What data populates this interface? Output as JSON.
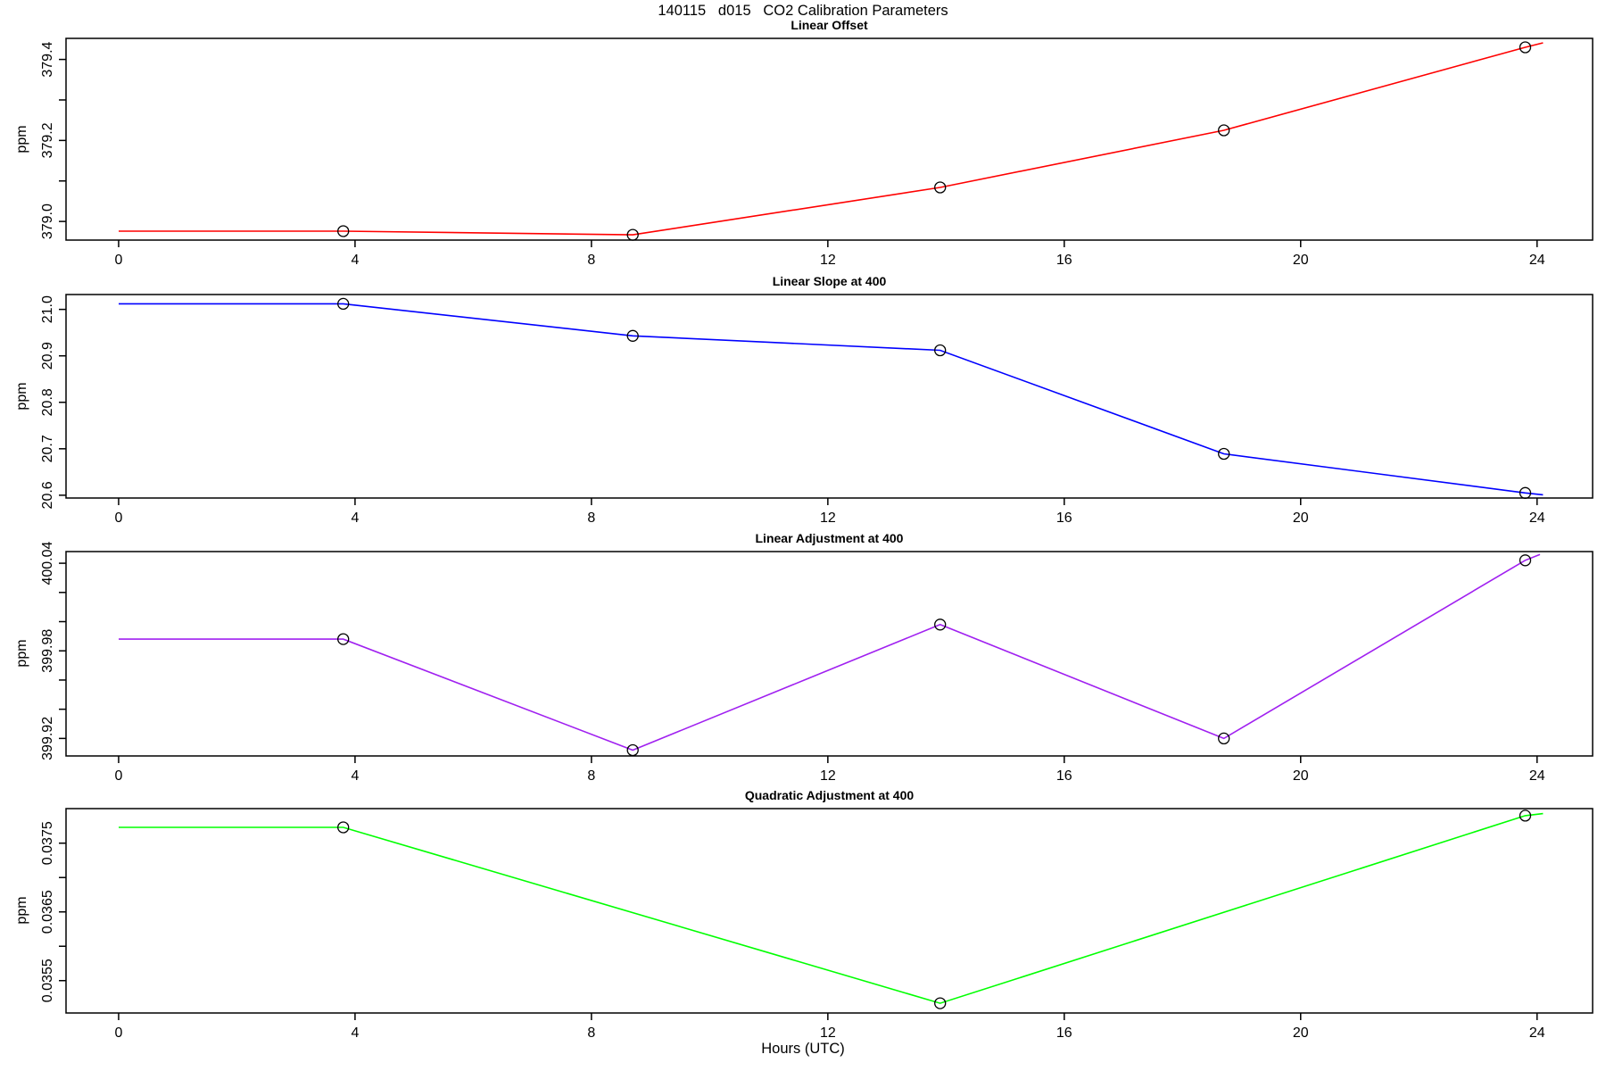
{
  "figure": {
    "title": "140115   d015   CO2 Calibration Parameters",
    "xlabel": "Hours (UTC)"
  },
  "chart_data": [
    {
      "type": "line",
      "title": "Linear Offset",
      "ylabel": "ppm",
      "color": "#FF0000",
      "marker": "open-circle",
      "x": [
        3.8,
        8.7,
        13.9,
        18.7,
        23.8
      ],
      "y": [
        378.976,
        378.967,
        379.084,
        379.225,
        379.43
      ],
      "line": {
        "x": [
          0,
          3.8,
          8.7,
          13.9,
          18.7,
          23.8,
          24.1
        ],
        "y": [
          378.976,
          378.976,
          378.967,
          379.084,
          379.225,
          379.43,
          379.441
        ]
      },
      "yticks": [
        379.0,
        379.1,
        379.2,
        379.3,
        379.4
      ],
      "ytick_labels": [
        "379.0",
        "",
        "379.2",
        "",
        "379.4"
      ],
      "ylim": [
        378.954,
        379.452
      ],
      "xticks": [
        0,
        4,
        8,
        12,
        16,
        20,
        24
      ],
      "xlim": [
        -0.89,
        24.94
      ],
      "grid": false
    },
    {
      "type": "line",
      "title": "Linear Slope at 400",
      "ylabel": "ppm",
      "color": "#0000FF",
      "marker": "open-circle",
      "x": [
        3.8,
        8.7,
        13.9,
        18.7,
        23.8
      ],
      "y": [
        21.012,
        20.943,
        20.912,
        20.689,
        20.605
      ],
      "line": {
        "x": [
          0,
          3.8,
          8.7,
          13.9,
          18.7,
          23.8,
          24.1
        ],
        "y": [
          21.012,
          21.012,
          20.943,
          20.912,
          20.689,
          20.605,
          20.601
        ]
      },
      "yticks": [
        20.6,
        20.7,
        20.8,
        20.9,
        21.0
      ],
      "ytick_labels": [
        "20.6",
        "20.7",
        "20.8",
        "20.9",
        "21.0"
      ],
      "ylim": [
        20.594,
        21.032
      ],
      "xticks": [
        0,
        4,
        8,
        12,
        16,
        20,
        24
      ],
      "xlim": [
        -0.89,
        24.94
      ],
      "grid": false
    },
    {
      "type": "line",
      "title": "Linear Adjustment at 400",
      "ylabel": "ppm",
      "color": "#A020F0",
      "marker": "open-circle",
      "x": [
        3.8,
        8.7,
        13.9,
        18.7,
        23.8
      ],
      "y": [
        399.988,
        399.912,
        399.998,
        399.92,
        400.042
      ],
      "line": {
        "x": [
          0,
          3.8,
          8.7,
          13.9,
          18.7,
          23.8,
          24.05
        ],
        "y": [
          399.988,
          399.988,
          399.912,
          399.998,
          399.92,
          400.042,
          400.046
        ]
      },
      "yticks": [
        399.92,
        399.94,
        399.96,
        399.98,
        400.0,
        400.02,
        400.04
      ],
      "ytick_labels": [
        "399.92",
        "",
        "",
        "399.98",
        "",
        "",
        "400.04"
      ],
      "ylim": [
        399.908,
        400.048
      ],
      "xticks": [
        0,
        4,
        8,
        12,
        16,
        20,
        24
      ],
      "xlim": [
        -0.89,
        24.94
      ],
      "grid": false
    },
    {
      "type": "line",
      "title": "Quadratic Adjustment at 400",
      "ylabel": "ppm",
      "color": "#00FF00",
      "marker": "open-circle",
      "x": [
        3.8,
        13.9,
        23.8
      ],
      "y": [
        0.03773,
        0.03517,
        0.0379
      ],
      "line": {
        "x": [
          0,
          3.8,
          13.9,
          23.8,
          24.1
        ],
        "y": [
          0.03773,
          0.03773,
          0.03517,
          0.0379,
          0.03793
        ]
      },
      "yticks": [
        0.0355,
        0.036,
        0.0365,
        0.037,
        0.0375
      ],
      "ytick_labels": [
        "0.0355",
        "",
        "0.0365",
        "",
        "0.0375"
      ],
      "ylim": [
        0.035029,
        0.038003
      ],
      "xticks": [
        0,
        4,
        8,
        12,
        16,
        20,
        24
      ],
      "xlim": [
        -0.89,
        24.94
      ],
      "grid": false
    }
  ]
}
